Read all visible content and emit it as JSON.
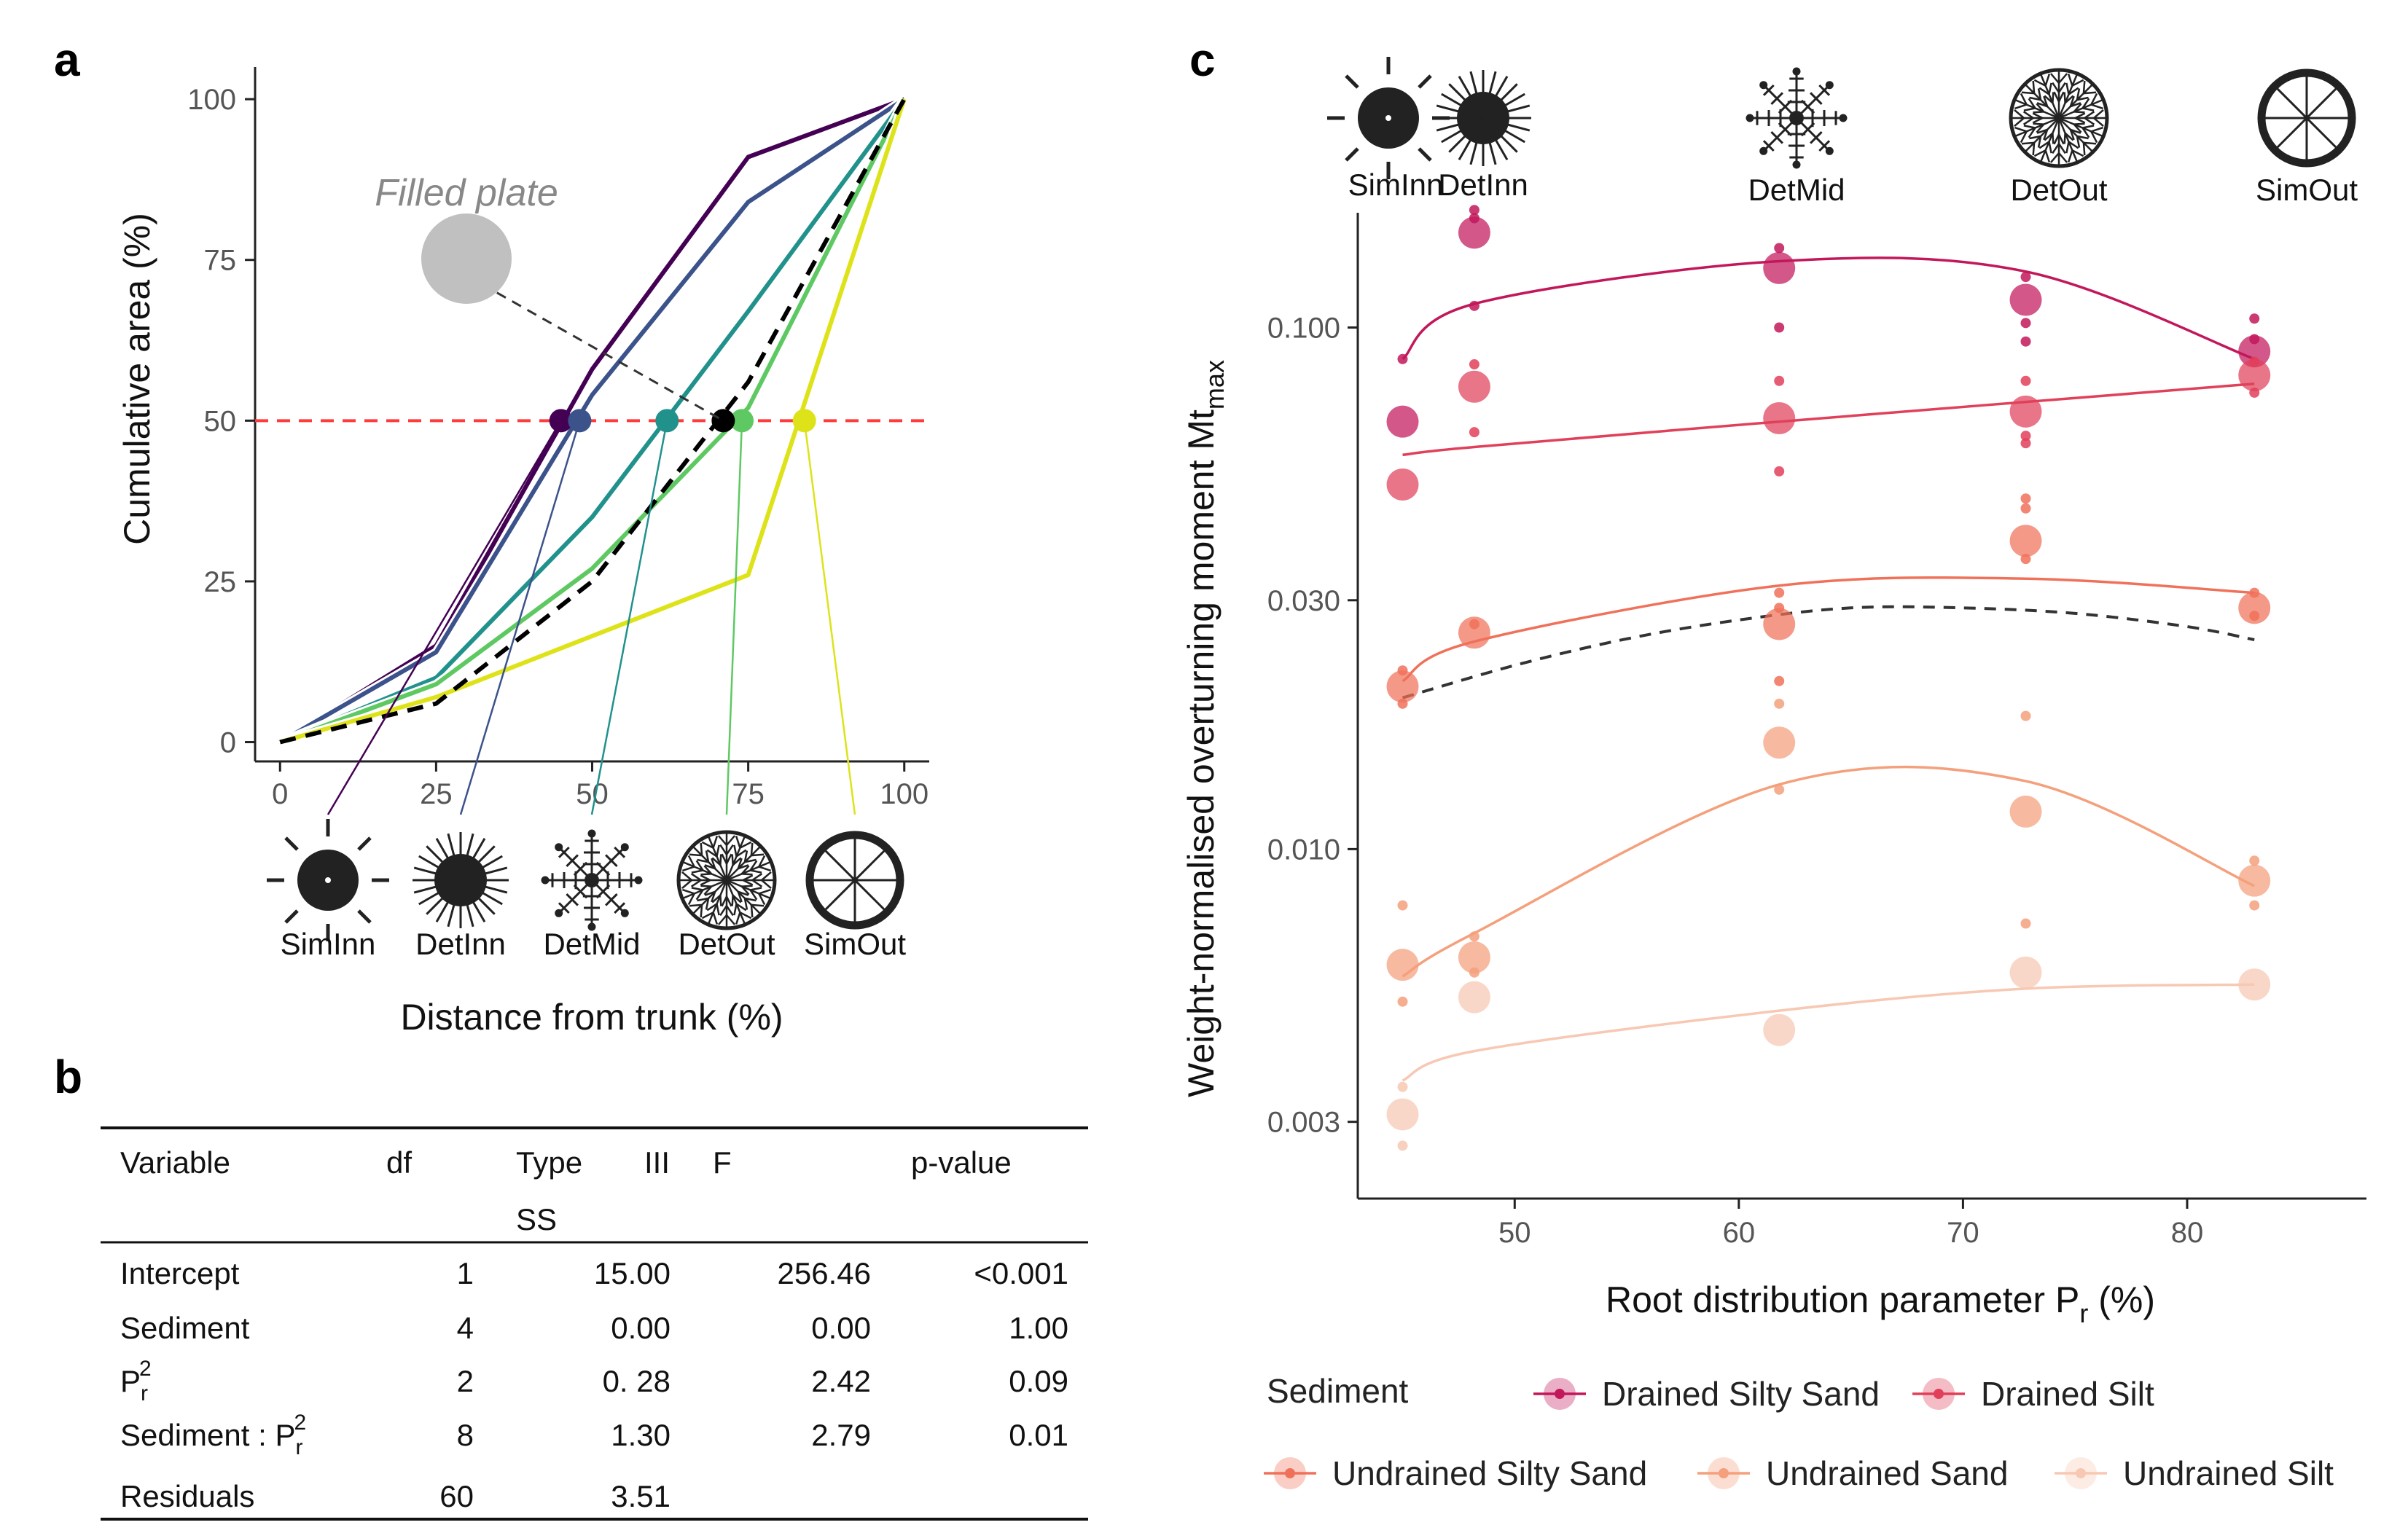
{
  "panel_labels": {
    "a": "a",
    "b": "b",
    "c": "c"
  },
  "colors": {
    "SimInn": "#440154",
    "DetInn": "#3b528b",
    "DetMid": "#21918c",
    "DetOut": "#5ec962",
    "SimOut": "#dde318",
    "filled": "#000000",
    "ref_line": "#ff3b3b",
    "filled_plate_disk": "#c0c0c0",
    "DrainedSiltySand": "#c2185b",
    "DrainedSilt": "#e0405a",
    "UndrainedSiltySand": "#f0715a",
    "UndrainedSand": "#f4a07c",
    "UndrainedSilt": "#f7c8b3"
  },
  "chart_data": [
    {
      "id": "a",
      "type": "line",
      "title": "",
      "xlabel": "Distance from trunk (%)",
      "ylabel": "Cumulative  area (%)",
      "xlim": [
        -4,
        104
      ],
      "ylim": [
        -3,
        105
      ],
      "x_ticks": [
        "0",
        "25",
        "50",
        "75",
        "100"
      ],
      "x_tick_values": [
        0,
        25,
        50,
        75,
        100
      ],
      "y_ticks": [
        "0",
        "25",
        "50",
        "75",
        "100"
      ],
      "y_tick_values": [
        0,
        25,
        50,
        75,
        100
      ],
      "reference_line_y": 50,
      "annotation": "Filled plate",
      "series": [
        {
          "name": "SimInn",
          "color": "#440154",
          "dashed": false,
          "x": [
            0,
            25,
            50,
            75,
            100
          ],
          "y": [
            0,
            15,
            58,
            91,
            100
          ],
          "half_x": 45
        },
        {
          "name": "DetInn",
          "color": "#3b528b",
          "dashed": false,
          "x": [
            0,
            25,
            50,
            75,
            100
          ],
          "y": [
            0,
            14,
            54,
            84,
            100
          ],
          "half_x": 48
        },
        {
          "name": "DetMid",
          "color": "#21918c",
          "dashed": false,
          "x": [
            0,
            25,
            50,
            75,
            100
          ],
          "y": [
            0,
            10,
            35,
            67,
            100
          ],
          "half_x": 62
        },
        {
          "name": "DetOut",
          "color": "#5ec962",
          "dashed": false,
          "x": [
            0,
            25,
            50,
            75,
            100
          ],
          "y": [
            0,
            9,
            27,
            52,
            100
          ],
          "half_x": 74
        },
        {
          "name": "SimOut",
          "color": "#dde318",
          "dashed": false,
          "x": [
            0,
            25,
            75,
            100
          ],
          "y": [
            0,
            7,
            26,
            100
          ],
          "half_x": 84
        },
        {
          "name": "Filled plate",
          "color": "#000000",
          "dashed": true,
          "x": [
            0,
            25,
            50,
            75,
            100
          ],
          "y": [
            0,
            6,
            25,
            56,
            100
          ],
          "half_x": 71
        }
      ],
      "icons": [
        {
          "name": "SimInn",
          "label": "SimInn"
        },
        {
          "name": "DetInn",
          "label": "DetInn"
        },
        {
          "name": "DetMid",
          "label": "DetMid"
        },
        {
          "name": "DetOut",
          "label": "DetOut"
        },
        {
          "name": "SimOut",
          "label": "SimOut"
        }
      ]
    },
    {
      "id": "b",
      "type": "table",
      "header_line1": [
        "Variable",
        "df",
        "Type",
        "III",
        "F",
        "p-value"
      ],
      "header_line2": "SS",
      "rows": [
        {
          "variable": "Intercept",
          "sup": "",
          "df": "1",
          "ss": "15.00",
          "f": "256.46",
          "p": "<0.001"
        },
        {
          "variable": "Sediment",
          "sup": "",
          "df": "4",
          "ss": "0.00",
          "f": "0.00",
          "p": "1.00"
        },
        {
          "variable": "P",
          "sub": "r",
          "sup": "2",
          "df": "2",
          "ss": "0. 28",
          "f": "2.42",
          "p": "0.09"
        },
        {
          "variable": "Sediment : P",
          "sub": "r",
          "sup": "2",
          "df": "8",
          "ss": "1.30",
          "f": "2.79",
          "p": "0.01"
        },
        {
          "variable": "Residuals",
          "sup": "",
          "df": "60",
          "ss": "3.51",
          "f": "",
          "p": ""
        }
      ]
    },
    {
      "id": "c",
      "type": "scatter",
      "xlabel": "Root distribution parameter P",
      "xlabel_sub": "r",
      "xlabel_suffix": " (%)",
      "ylabel": "Weight-normalised overturning moment Mt",
      "ylabel_sub": "max",
      "y_scale": "log",
      "xlim": [
        43,
        88
      ],
      "ylim_log10": [
        -2.67,
        -0.78
      ],
      "x_ticks": [
        "50",
        "60",
        "70",
        "80"
      ],
      "x_tick_values": [
        50,
        60,
        70,
        80
      ],
      "y_ticks": [
        "0.003",
        "0.010",
        "0.030",
        "0.100"
      ],
      "y_tick_values": [
        0.003,
        0.01,
        0.03,
        0.1
      ],
      "x_categories": [
        45,
        48.2,
        61.8,
        72.8,
        83
      ],
      "icons": [
        {
          "name": "SimInn",
          "label": "SimInn",
          "x": 45
        },
        {
          "name": "DetInn",
          "label": "DetInn",
          "x": 48.2
        },
        {
          "name": "DetMid",
          "label": "DetMid",
          "x": 61.8
        },
        {
          "name": "DetOut",
          "label": "DetOut",
          "x": 72.8
        },
        {
          "name": "SimOut",
          "label": "SimOut",
          "x": 83
        }
      ],
      "legend_title": "Sediment",
      "series": [
        {
          "name": "Drained Silty Sand",
          "color": "#c2185b",
          "means": [
            0.066,
            0.152,
            0.13,
            0.113,
            0.09
          ],
          "reps": [
            [
              0.087
            ],
            [
              0.168,
              0.162,
              0.11
            ],
            [
              0.142,
              0.1
            ],
            [
              0.125,
              0.102,
              0.094
            ],
            [
              0.104,
              0.095
            ]
          ],
          "fit": [
            0.087,
            0.111,
            0.134,
            0.128,
            0.087
          ]
        },
        {
          "name": "Drained Silt",
          "color": "#e0405a",
          "means": [
            0.05,
            0.077,
            0.067,
            0.069,
            0.081
          ],
          "reps": [
            [],
            [
              0.085,
              0.063
            ],
            [
              0.079,
              0.053
            ],
            [
              0.079,
              0.062,
              0.06
            ],
            [
              0.086,
              0.075
            ]
          ],
          "fit": [
            0.057,
            0.059,
            0.066,
            0.072,
            0.078
          ]
        },
        {
          "name": "Undrained Silty Sand",
          "color": "#f0715a",
          "means": [
            0.0205,
            0.026,
            0.027,
            0.039,
            0.029
          ],
          "reps": [
            [
              0.022,
              0.019
            ],
            [
              0.027
            ],
            [
              0.031,
              0.029,
              0.021
            ],
            [
              0.047,
              0.045,
              0.036
            ],
            [
              0.031,
              0.028
            ]
          ],
          "fit": [
            0.021,
            0.025,
            0.032,
            0.033,
            0.031
          ]
        },
        {
          "name": "Undrained Sand",
          "color": "#f4a07c",
          "means": [
            0.006,
            0.0062,
            0.016,
            0.0118,
            0.0087
          ],
          "reps": [
            [
              0.0078,
              0.0051
            ],
            [
              0.0068,
              0.0058
            ],
            [
              0.019,
              0.013
            ],
            [
              0.018,
              0.0072
            ],
            [
              0.0095,
              0.0078
            ]
          ],
          "fit": [
            0.0057,
            0.0069,
            0.0133,
            0.0135,
            0.0085
          ]
        },
        {
          "name": "Undrained Silt",
          "color": "#f7c8b3",
          "means": [
            0.0031,
            0.0052,
            0.0045,
            0.0058,
            0.0055
          ],
          "reps": [
            [
              0.0035,
              0.0027
            ],
            [],
            [],
            [],
            []
          ],
          "fit": [
            0.0036,
            0.0041,
            0.0049,
            0.0054,
            0.0055
          ]
        }
      ],
      "overall_fit": {
        "name": "overall",
        "dashed": true,
        "x": [
          45,
          50,
          55,
          60,
          65,
          70,
          75,
          80,
          83
        ],
        "y": [
          0.0195,
          0.0225,
          0.0253,
          0.0275,
          0.029,
          0.029,
          0.0283,
          0.0267,
          0.0252
        ]
      }
    }
  ]
}
